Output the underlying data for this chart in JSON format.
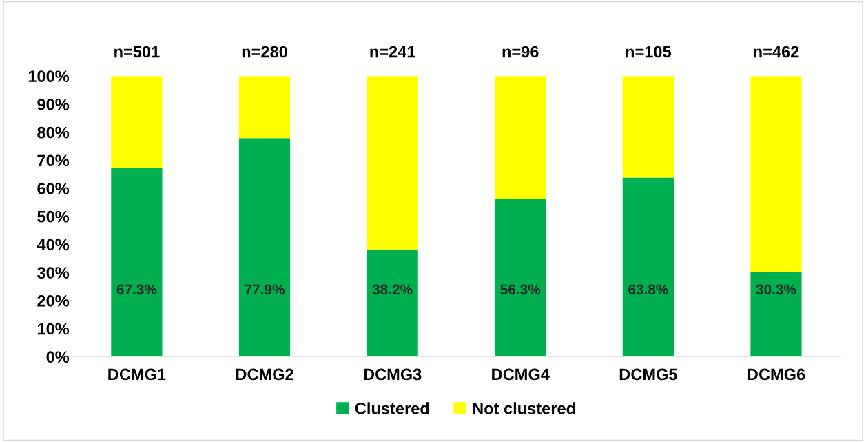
{
  "chart_data": {
    "type": "bar",
    "stacked": true,
    "categories": [
      "DCMG1",
      "DCMG2",
      "DCMG3",
      "DCMG4",
      "DCMG5",
      "DCMG6"
    ],
    "series": [
      {
        "name": "Clustered",
        "color": "#00b050",
        "values": [
          67.3,
          77.9,
          38.2,
          56.3,
          63.8,
          30.3
        ],
        "value_labels": [
          "67.3%",
          "77.9%",
          "38.2%",
          "56.3%",
          "63.8%",
          "30.3%"
        ]
      },
      {
        "name": "Not clustered",
        "color": "#ffff00",
        "values": [
          32.7,
          22.1,
          61.8,
          43.7,
          36.2,
          69.7
        ]
      }
    ],
    "ylim": [
      0,
      100
    ],
    "yticks": [
      {
        "value": 0,
        "label": "0%"
      },
      {
        "value": 10,
        "label": "10%"
      },
      {
        "value": 20,
        "label": "20%"
      },
      {
        "value": 30,
        "label": "30%"
      },
      {
        "value": 40,
        "label": "40%"
      },
      {
        "value": 50,
        "label": "50%"
      },
      {
        "value": 60,
        "label": "60%"
      },
      {
        "value": 70,
        "label": "70%"
      },
      {
        "value": 80,
        "label": "80%"
      },
      {
        "value": 90,
        "label": "90%"
      },
      {
        "value": 100,
        "label": "100%"
      }
    ],
    "annotations": [
      {
        "text": "n=501",
        "x": "DCMG1",
        "y": 100
      },
      {
        "text": "n=280",
        "x": "DCMG2",
        "y": 100
      },
      {
        "text": "n=241",
        "x": "DCMG3",
        "y": 100
      },
      {
        "text": "n=96",
        "x": "DCMG4",
        "y": 100
      },
      {
        "text": "n=105",
        "x": "DCMG5",
        "y": 100
      },
      {
        "text": "n=462",
        "x": "DCMG6",
        "y": 100
      }
    ],
    "grid": false,
    "legend": "bottom"
  }
}
